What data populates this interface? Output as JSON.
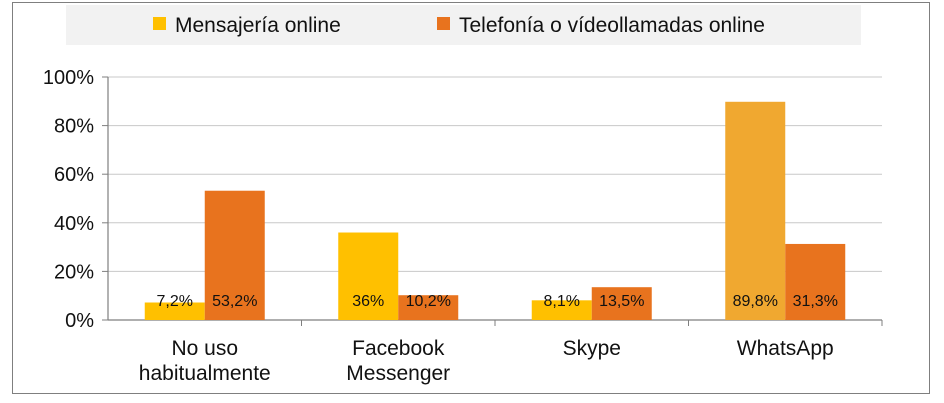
{
  "chart_data": {
    "type": "bar",
    "categories": [
      [
        "No uso",
        "habitualmente"
      ],
      [
        "Facebook",
        "Messenger"
      ],
      [
        "Skype"
      ],
      [
        "WhatsApp"
      ]
    ],
    "series": [
      {
        "name": "Mensajería online",
        "values": [
          7.2,
          36,
          8.1,
          89.8
        ],
        "labels": [
          "7,2%",
          "36%",
          "8,1%",
          "89,8%"
        ],
        "colors": [
          "#FFC000",
          "#FFC000",
          "#FFC000",
          "#F0A830"
        ]
      },
      {
        "name": "Telefonía o vídeollamadas online",
        "values": [
          53.2,
          10.2,
          13.5,
          31.3
        ],
        "labels": [
          "53,2%",
          "10,2%",
          "13,5%",
          "31,3%"
        ],
        "colors": [
          "#E8731E",
          "#E8731E",
          "#E8731E",
          "#E8731E"
        ]
      }
    ],
    "ylim": [
      0,
      100
    ],
    "yticks": [
      0,
      20,
      40,
      60,
      80,
      100
    ],
    "ytick_labels": [
      "0%",
      "20%",
      "40%",
      "60%",
      "80%",
      "100%"
    ],
    "grid": true,
    "legend_position": "top",
    "colors": {
      "mensajeria": "#FFC000",
      "telefonia": "#E8731E",
      "grid": "#c8c8c8",
      "axis": "#7f7f7f"
    }
  }
}
